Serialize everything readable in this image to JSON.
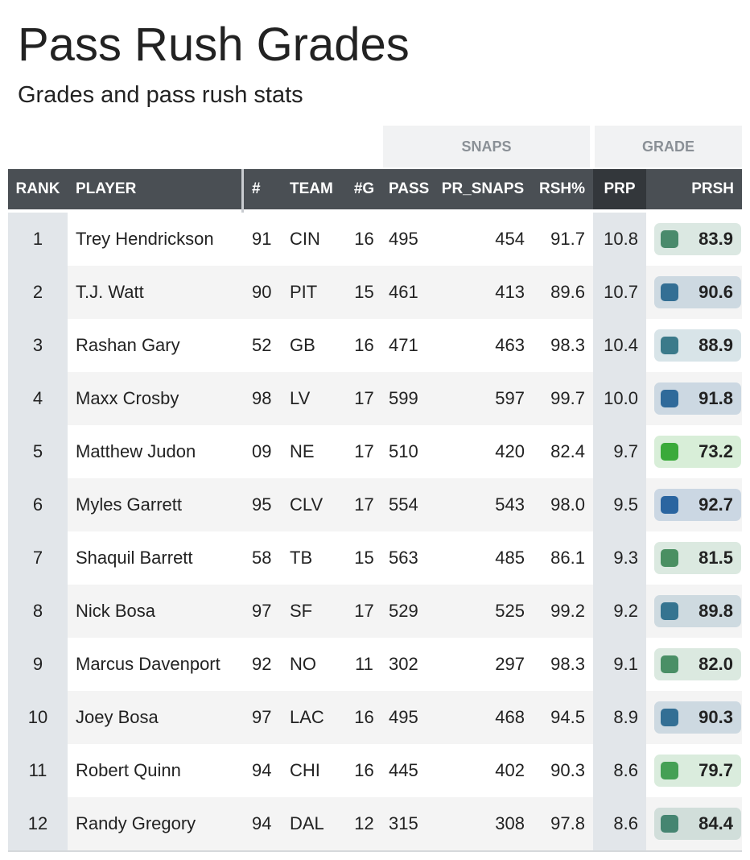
{
  "header": {
    "title": "Pass Rush Grades",
    "subtitle": "Grades and pass rush stats"
  },
  "table": {
    "groups": [
      "SNAPS",
      "GRADE"
    ],
    "columns": [
      "RANK",
      "PLAYER",
      "#",
      "TEAM",
      "#G",
      "PASS",
      "PR_SNAPS",
      "RSH%",
      "PRP",
      "PRSH"
    ],
    "rows": [
      [
        "1",
        "Trey Hendrickson",
        "91",
        "CIN",
        "16",
        "495",
        "454",
        "91.7",
        "10.8",
        "83.9"
      ],
      [
        "2",
        "T.J. Watt",
        "90",
        "PIT",
        "15",
        "461",
        "413",
        "89.6",
        "10.7",
        "90.6"
      ],
      [
        "3",
        "Rashan Gary",
        "52",
        "GB",
        "16",
        "471",
        "463",
        "98.3",
        "10.4",
        "88.9"
      ],
      [
        "4",
        "Maxx Crosby",
        "98",
        "LV",
        "17",
        "599",
        "597",
        "99.7",
        "10.0",
        "91.8"
      ],
      [
        "5",
        "Matthew Judon",
        "09",
        "NE",
        "17",
        "510",
        "420",
        "82.4",
        "9.7",
        "73.2"
      ],
      [
        "6",
        "Myles Garrett",
        "95",
        "CLV",
        "17",
        "554",
        "543",
        "98.0",
        "9.5",
        "92.7"
      ],
      [
        "7",
        "Shaquil Barrett",
        "58",
        "TB",
        "15",
        "563",
        "485",
        "86.1",
        "9.3",
        "81.5"
      ],
      [
        "8",
        "Nick Bosa",
        "97",
        "SF",
        "17",
        "529",
        "525",
        "99.2",
        "9.2",
        "89.8"
      ],
      [
        "9",
        "Marcus Davenport",
        "92",
        "NO",
        "11",
        "302",
        "297",
        "98.3",
        "9.1",
        "82.0"
      ],
      [
        "10",
        "Joey Bosa",
        "97",
        "LAC",
        "16",
        "495",
        "468",
        "94.5",
        "8.9",
        "90.3"
      ],
      [
        "11",
        "Robert Quinn",
        "94",
        "CHI",
        "16",
        "445",
        "402",
        "90.3",
        "8.6",
        "79.7"
      ],
      [
        "12",
        "Randy Gregory",
        "94",
        "DAL",
        "12",
        "315",
        "308",
        "97.8",
        "8.6",
        "84.4"
      ]
    ],
    "grade_colors": [
      "#4a8a6c",
      "#336f94",
      "#3b7a8a",
      "#2f6a9a",
      "#3aaa3a",
      "#2a65a0",
      "#4a8f62",
      "#357490",
      "#4a8f66",
      "#336f94",
      "#45a055",
      "#458571"
    ]
  }
}
